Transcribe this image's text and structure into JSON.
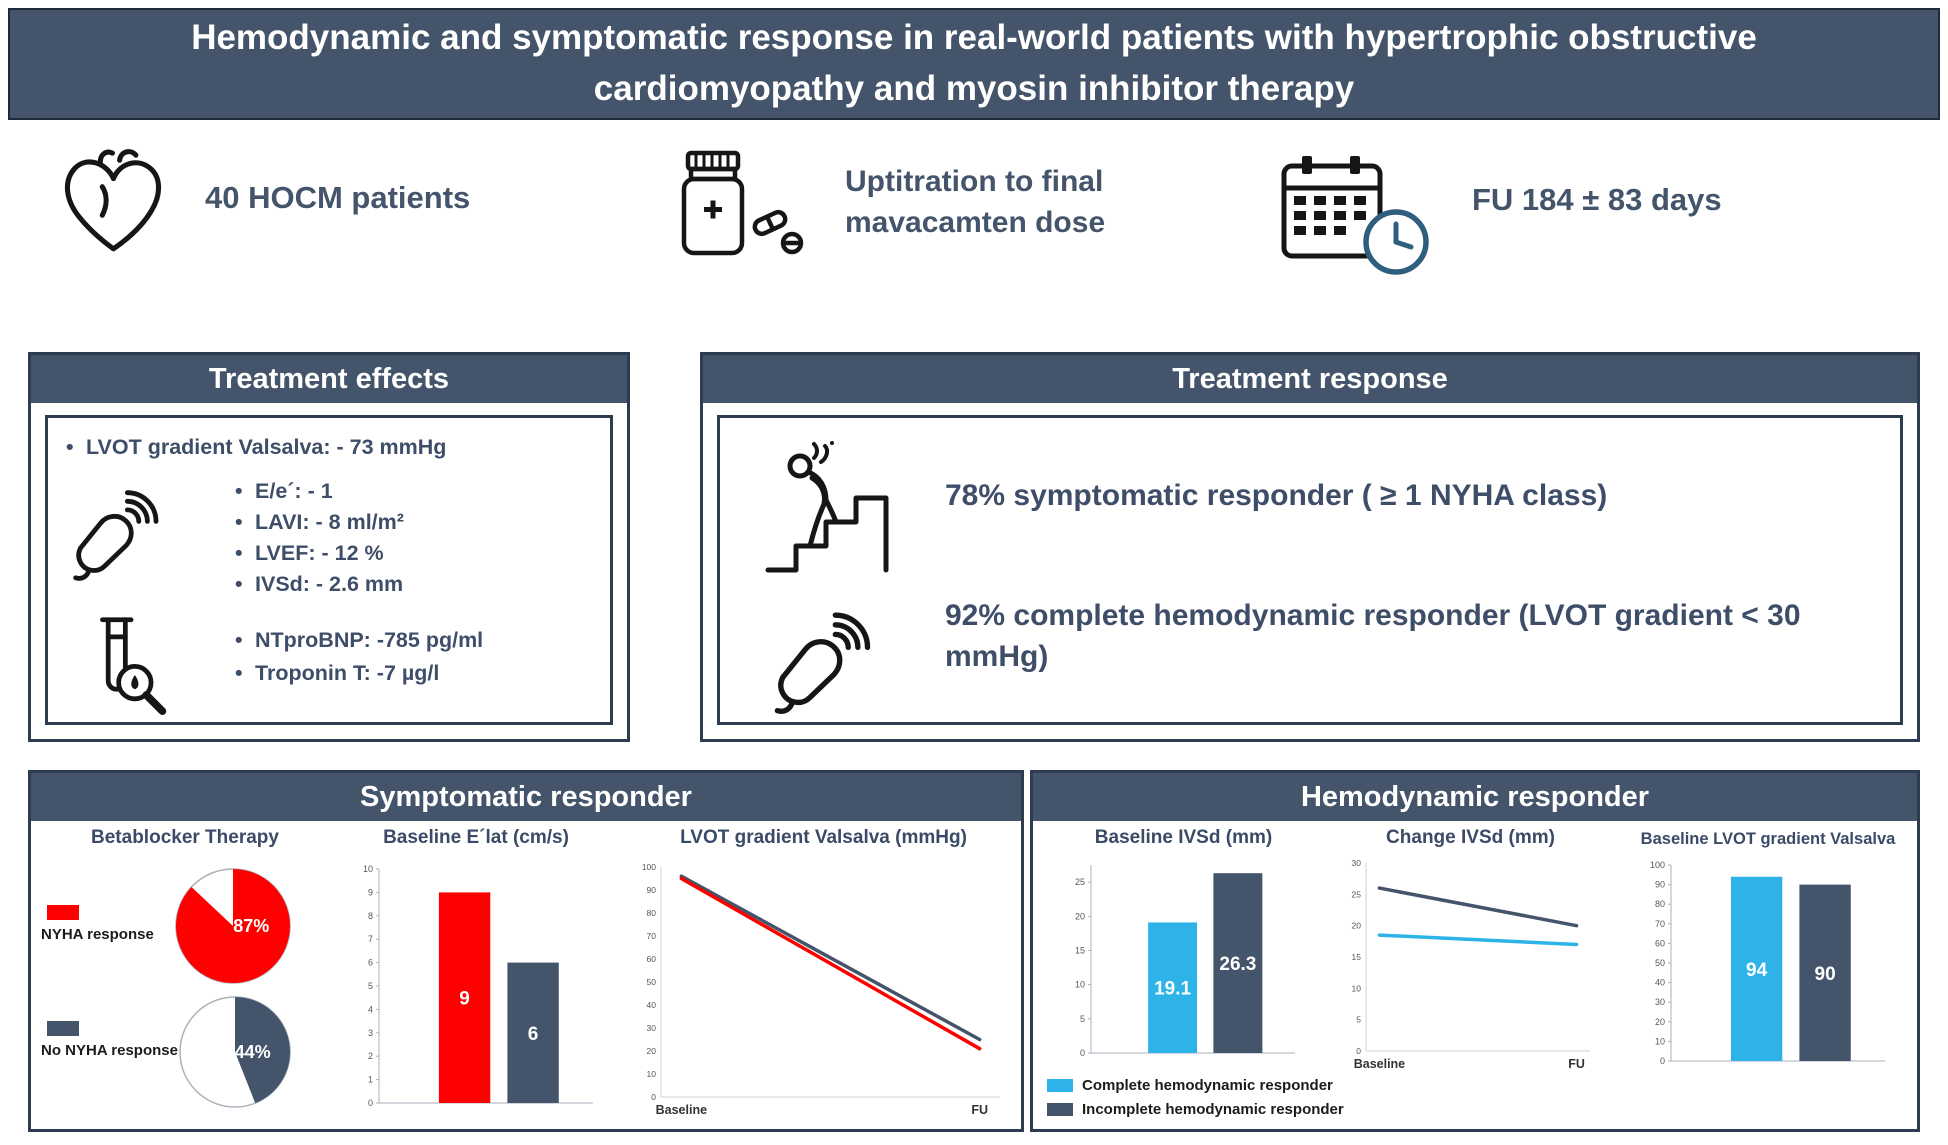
{
  "title": "Hemodynamic and symptomatic response in real-world patients with hypertrophic obstructive cardiomyopathy and myosin inhibitor therapy",
  "highlights": [
    {
      "icon": "heart-icon",
      "text": "40 HOCM patients"
    },
    {
      "icon": "medication-bottle-icon",
      "text": "Uptitration to final mavacamten dose"
    },
    {
      "icon": "calendar-clock-icon",
      "text": "FU 184 ± 83 days"
    }
  ],
  "treatment_effects": {
    "title": "Treatment effects",
    "lvot_bullet": "LVOT gradient Valsalva: - 73 mmHg",
    "echo_bullets": [
      "E/e´: - 1",
      "LAVI: - 8 ml/m²",
      "LVEF: - 12 %",
      "IVSd: - 2.6 mm"
    ],
    "lab_bullets": [
      "NTproBNP: -785 pg/ml",
      "Troponin T: -7 µg/l"
    ]
  },
  "treatment_response": {
    "title": "Treatment response",
    "symptomatic": "78% symptomatic responder ( ≥ 1 NYHA class)",
    "hemodynamic": "92% complete hemodynamic responder (LVOT gradient < 30 mmHg)"
  },
  "bottom": {
    "left_title": "Symptomatic responder",
    "right_title": "Hemodynamic responder"
  },
  "legends": {
    "symptomatic": [
      {
        "label": "NYHA response",
        "color_key": "red"
      },
      {
        "label": "No NYHA response",
        "color_key": "slate"
      }
    ],
    "hemodynamic": [
      {
        "label": "Complete hemodynamic responder",
        "color_key": "cyan"
      },
      {
        "label": "Incomplete hemodynamic responder",
        "color_key": "slate"
      }
    ]
  },
  "colors": {
    "red": "#fe0000",
    "slate": "#44546a",
    "cyan": "#2db3e8",
    "header_bg": "#44546a",
    "header_text": "#ffffff",
    "text": "#44546a"
  },
  "chart_data": [
    {
      "id": "betablocker-pies",
      "type": "pie",
      "title": "Betablocker Therapy",
      "slices": [
        {
          "legend": "NYHA response",
          "pct": 87,
          "label": "87%",
          "color_key": "red"
        },
        {
          "legend": "No NYHA response",
          "pct": 44,
          "label": "44%",
          "color_key": "slate"
        }
      ]
    },
    {
      "id": "baseline-elat",
      "type": "bar",
      "title": "Baseline E´lat (cm/s)",
      "values": [
        9,
        6
      ],
      "value_labels": [
        "9",
        "6"
      ],
      "color_keys": [
        "red",
        "slate"
      ],
      "ylim": [
        0,
        10
      ],
      "tick_step": 1,
      "tick_max": 10
    },
    {
      "id": "lvot-valsalva-lines",
      "type": "line",
      "title": "LVOT gradient Valsalva (mmHg)",
      "x_labels": [
        "Baseline",
        "FU"
      ],
      "series": [
        {
          "name": "No NYHA response",
          "color_key": "slate",
          "values": [
            96,
            25
          ]
        },
        {
          "name": "NYHA response",
          "color_key": "red",
          "values": [
            95,
            21
          ]
        }
      ],
      "ylim": [
        0,
        100
      ],
      "tick_step": 10,
      "tick_max": 100
    },
    {
      "id": "baseline-ivsd",
      "type": "bar",
      "title": "Baseline IVSd (mm)",
      "values": [
        19.1,
        26.3
      ],
      "value_labels": [
        "19.1",
        "26.3"
      ],
      "color_keys": [
        "cyan",
        "slate"
      ],
      "ylim": [
        0,
        27.5
      ],
      "tick_step": 5,
      "tick_max": 25
    },
    {
      "id": "change-ivsd",
      "type": "line",
      "title": "Change IVSd (mm)",
      "x_labels": [
        "Baseline",
        "FU"
      ],
      "series": [
        {
          "name": "Incomplete hemodynamic responder",
          "color_key": "slate",
          "values": [
            26,
            20
          ]
        },
        {
          "name": "Complete hemodynamic responder",
          "color_key": "cyan",
          "values": [
            18.5,
            17
          ]
        }
      ],
      "ylim": [
        0,
        30
      ],
      "tick_step": 5,
      "tick_max": 30
    },
    {
      "id": "baseline-lvot",
      "type": "bar",
      "title": "Baseline LVOT gradient Valsalva",
      "values": [
        94,
        90
      ],
      "value_labels": [
        "94",
        "90"
      ],
      "color_keys": [
        "cyan",
        "slate"
      ],
      "ylim": [
        0,
        100
      ],
      "tick_step": 10,
      "tick_max": 100
    }
  ]
}
